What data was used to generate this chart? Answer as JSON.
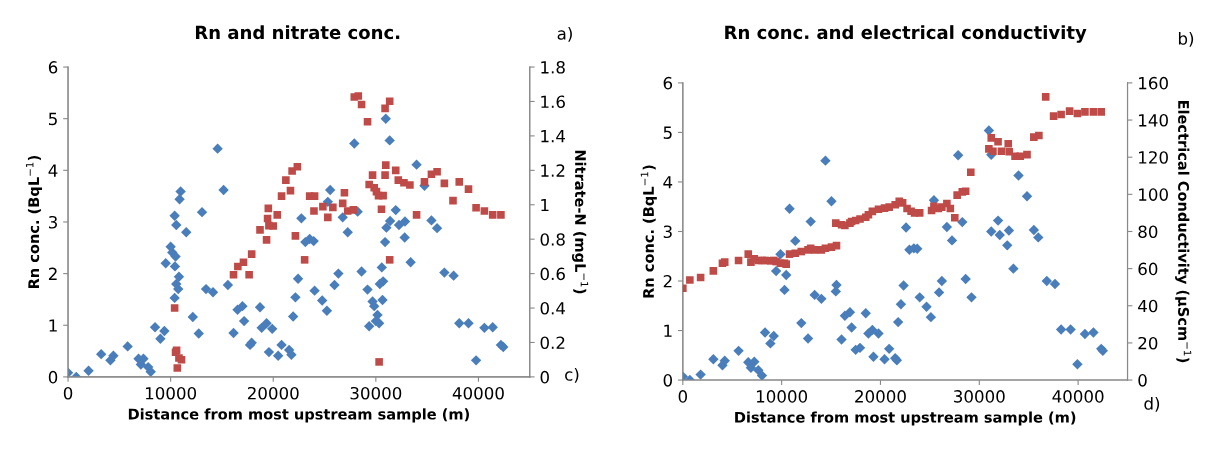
{
  "chart_data": [
    {
      "type": "scatter",
      "title": "Rn and nitrate conc.",
      "xlabel": "Distance from most upstream sample (m)",
      "ylabel": "Rn conc. (BqL$^{−1}$)",
      "y2label": "Nitrate-N (mgL$^{−1}$)",
      "annotations": [
        "a)",
        "c)"
      ],
      "xlim": [
        0,
        45000
      ],
      "xticks": [
        0,
        10000,
        20000,
        30000,
        40000
      ],
      "ylim": [
        0,
        6
      ],
      "yticks": [
        0,
        1,
        2,
        3,
        4,
        5,
        6
      ],
      "y2lim": [
        0,
        1.8
      ],
      "y2ticks": [
        0,
        0.2,
        0.4,
        0.6,
        0.8,
        1,
        1.2,
        1.4,
        1.6,
        1.8
      ],
      "grid": false,
      "legend": false,
      "series": [
        {
          "color": "#4a7ebb",
          "marker": "diamond",
          "x": [
            0,
            800,
            2000,
            3230,
            4130,
            4420,
            5810,
            6870,
            7100,
            7350,
            7810,
            8060,
            8480,
            9000,
            9390,
            9520,
            10000,
            10160,
            10390,
            10480,
            10550,
            10420,
            10550,
            10390,
            10810,
            10740,
            10970,
            10870,
            11520,
            12160,
            12740,
            13060,
            13450,
            14130,
            14580,
            15160,
            15580,
            16130,
            16520,
            17000,
            17160,
            17740,
            17900,
            18710,
            18870,
            19350,
            19580,
            19900,
            20480,
            20810,
            21550,
            21770,
            21940,
            22160,
            22420,
            22740,
            23130,
            23550,
            23940,
            24030,
            24770,
            25230,
            25550,
            25320,
            25970,
            26350,
            26770,
            27260,
            27900,
            28230,
            28610,
            29190,
            29350,
            29680,
            29840,
            30000,
            30160,
            30320,
            30390,
            30580,
            30710,
            30650,
            30900,
            30970,
            31030,
            31350,
            31390,
            31940,
            32260,
            32840,
            32810,
            33390,
            33970,
            34740,
            35420,
            35970,
            36680,
            37580,
            38130,
            39030,
            39770,
            40580,
            41390,
            42190,
            42420
          ],
          "values": [
            0.08,
            0,
            0.12,
            0.44,
            0.32,
            0.41,
            0.59,
            0.35,
            0.24,
            0.35,
            0.19,
            0.1,
            0.96,
            0.74,
            0.89,
            2.2,
            2.52,
            2.41,
            3.12,
            2.33,
            2.94,
            2.14,
            1.8,
            1.53,
            1.94,
            1.7,
            3.59,
            3.44,
            2.8,
            1.16,
            0.84,
            3.19,
            1.7,
            1.64,
            4.42,
            3.62,
            1.78,
            0.85,
            1.3,
            1.37,
            1.08,
            0.62,
            0.66,
            1.35,
            0.95,
            1.04,
            0.48,
            0.93,
            0.41,
            0.62,
            0.52,
            0.43,
            1.17,
            1.54,
            1.9,
            3.07,
            2.61,
            2.67,
            2.63,
            1.67,
            1.48,
            1.28,
            3.62,
            3.39,
            1.78,
            2.0,
            3.09,
            2.8,
            4.52,
            3.2,
            2.04,
            1.69,
            0.98,
            1.46,
            1.37,
            1.08,
            1.2,
            1.04,
            1.8,
            2.12,
            1.85,
            1.49,
            2.61,
            5.0,
            2.89,
            4.58,
            3.02,
            3.23,
            2.94,
            3.01,
            2.7,
            2.22,
            4.11,
            3.7,
            3.03,
            2.88,
            2.02,
            1.96,
            1.04,
            1.04,
            0.32,
            0.95,
            0.96,
            0.62,
            0.58
          ]
        },
        {
          "color": "#be4b48",
          "marker": "square",
          "axis": "y2",
          "x": [
            10390,
            10480,
            10650,
            10810,
            11060,
            10580,
            16130,
            16550,
            17100,
            17650,
            17900,
            18710,
            19350,
            19520,
            19450,
            19580,
            20000,
            20390,
            20810,
            21230,
            21680,
            21840,
            22350,
            22160,
            23060,
            23550,
            24030,
            23970,
            24840,
            25320,
            25810,
            26770,
            26940,
            27260,
            27810,
            27900,
            28290,
            28610,
            29190,
            29350,
            29680,
            29840,
            30060,
            30260,
            30550,
            30320,
            30710,
            30900,
            30970,
            30900,
            31350,
            31350,
            31940,
            32190,
            32740,
            33320,
            33970,
            34740,
            35420,
            35970,
            36680,
            37520,
            38130,
            39030,
            39770,
            40580,
            41390,
            42190
          ],
          "values": [
            0.4,
            0.143,
            0.052,
            0.11,
            0.1,
            0.155,
            0.593,
            0.641,
            0.666,
            0.593,
            0.713,
            0.854,
            0.796,
            0.979,
            0.92,
            0.879,
            0.877,
            0.941,
            1.05,
            1.143,
            1.082,
            1.196,
            1.221,
            0.819,
            0.68,
            1.05,
            1.05,
            0.964,
            0.989,
            0.927,
            0.985,
            1.008,
            1.07,
            0.964,
            0.97,
            1.626,
            1.632,
            1.582,
            1.482,
            1.118,
            1.172,
            1.099,
            1.076,
            1.053,
            0.974,
            0.087,
            1.053,
            1.172,
            1.23,
            1.56,
            1.601,
            0.68,
            1.2,
            1.143,
            1.128,
            1.115,
            0.941,
            1.133,
            1.177,
            1.192,
            1.124,
            1.024,
            1.133,
            1.091,
            0.983,
            0.964,
            0.941,
            0.941
          ]
        }
      ]
    },
    {
      "type": "scatter",
      "title": "Rn conc. and electrical conductivity",
      "xlabel": "Distance from most upstream sample (m)",
      "ylabel": "Rn conc. (BqL$^{−1}$)",
      "y2label": "Electrical Conductivity (µScm$^{−1}$)",
      "annotations": [
        "b)",
        "d)"
      ],
      "xlim": [
        0,
        45000
      ],
      "xticks": [
        0,
        10000,
        20000,
        30000,
        40000
      ],
      "ylim": [
        0,
        6
      ],
      "yticks": [
        0,
        1,
        2,
        3,
        4,
        5,
        6
      ],
      "y2lim": [
        0,
        160
      ],
      "y2ticks": [
        0,
        20,
        40,
        60,
        80,
        100,
        120,
        140,
        160
      ],
      "grid": false,
      "legend": false,
      "series": [
        {
          "color": "#4a7ebb",
          "marker": "diamond",
          "x": [
            0,
            710,
            1800,
            3090,
            4010,
            4240,
            5640,
            6620,
            6890,
            7230,
            7640,
            8010,
            8320,
            8860,
            9200,
            9440,
            9880,
            10290,
            10460,
            10800,
            11380,
            11990,
            12670,
            12940,
            13340,
            14020,
            14430,
            15040,
            15550,
            15480,
            16060,
            16400,
            16910,
            17080,
            17490,
            17930,
            18510,
            18780,
            19180,
            19290,
            19800,
            20410,
            20880,
            21490,
            21660,
            21790,
            22070,
            22340,
            22590,
            22930,
            23380,
            23720,
            23970,
            24660,
            25100,
            25410,
            25930,
            26210,
            26720,
            27240,
            27860,
            28280,
            28620,
            29210,
            30970,
            31210,
            31210,
            31900,
            32070,
            32830,
            33000,
            33450,
            33970,
            34830,
            35520,
            35970,
            36830,
            37660,
            38280,
            39240,
            39930,
            40690,
            41550,
            42340,
            42500
          ],
          "values": [
            0.07,
            0,
            0.11,
            0.42,
            0.3,
            0.39,
            0.59,
            0.36,
            0.25,
            0.37,
            0.2,
            0.09,
            0.96,
            0.74,
            0.89,
            2.2,
            2.54,
            1.82,
            2.12,
            3.46,
            2.81,
            1.15,
            0.84,
            3.2,
            1.72,
            1.64,
            4.43,
            3.61,
            1.92,
            1.79,
            0.82,
            1.3,
            1.37,
            1.06,
            0.61,
            0.65,
            1.35,
            0.94,
            1.01,
            0.47,
            0.94,
            0.42,
            0.63,
            0.44,
            0.4,
            1.17,
            1.53,
            1.91,
            3.08,
            2.63,
            2.66,
            2.65,
            1.67,
            1.48,
            1.27,
            3.63,
            1.77,
            2.0,
            3.09,
            2.82,
            4.54,
            3.19,
            2.04,
            1.67,
            5.04,
            4.55,
            3.0,
            3.22,
            2.93,
            2.72,
            3.02,
            2.25,
            4.13,
            3.71,
            3.03,
            2.88,
            2.0,
            1.94,
            1.02,
            1.02,
            0.32,
            0.93,
            0.96,
            0.63,
            0.59
          ]
        },
        {
          "color": "#be4b48",
          "marker": "square",
          "axis": "y2",
          "x": [
            0,
            710,
            1800,
            3090,
            4010,
            4240,
            5640,
            6620,
            6890,
            7230,
            7640,
            8010,
            8320,
            8860,
            9200,
            9440,
            9880,
            10290,
            10460,
            10800,
            11380,
            11990,
            12670,
            12940,
            13340,
            14020,
            14430,
            15040,
            15550,
            15480,
            16060,
            16400,
            16910,
            17080,
            17490,
            17930,
            18510,
            18780,
            19180,
            19800,
            20410,
            20880,
            21490,
            21900,
            22240,
            22690,
            23100,
            23450,
            23970,
            25170,
            25410,
            25860,
            26210,
            26720,
            27070,
            27520,
            27760,
            28280,
            28620,
            29140,
            30970,
            31210,
            31380,
            31900,
            32240,
            32930,
            33030,
            33620,
            34140,
            34830,
            35520,
            36030,
            36720,
            37520,
            38280,
            39140,
            39930,
            40690,
            41550,
            42340
          ],
          "values": [
            49.4,
            53.9,
            55.2,
            58.8,
            62.9,
            63.5,
            64.4,
            67.8,
            63.5,
            65.3,
            64.4,
            64.4,
            64.4,
            64.2,
            64.4,
            63.8,
            62.9,
            62.9,
            62.4,
            67.8,
            68.3,
            69.2,
            70.1,
            71.0,
            70.1,
            70.1,
            71.0,
            71.6,
            72.4,
            84.5,
            83.6,
            83.2,
            84.5,
            85.4,
            85.9,
            86.7,
            87.7,
            89.0,
            90.8,
            92.0,
            92.6,
            93.1,
            94.4,
            96.2,
            95.4,
            92.4,
            90.9,
            90.0,
            90.0,
            91.3,
            93.6,
            92.4,
            93.1,
            95.1,
            92.4,
            87.4,
            99.6,
            101.3,
            101.7,
            111.9,
            124.5,
            130.4,
            123.2,
            128.3,
            123.2,
            127.2,
            122.9,
            120.5,
            120.5,
            121.4,
            130.8,
            131.7,
            152.5,
            142.1,
            143.0,
            144.8,
            143.5,
            144.4,
            144.4,
            144.4
          ]
        }
      ]
    }
  ]
}
